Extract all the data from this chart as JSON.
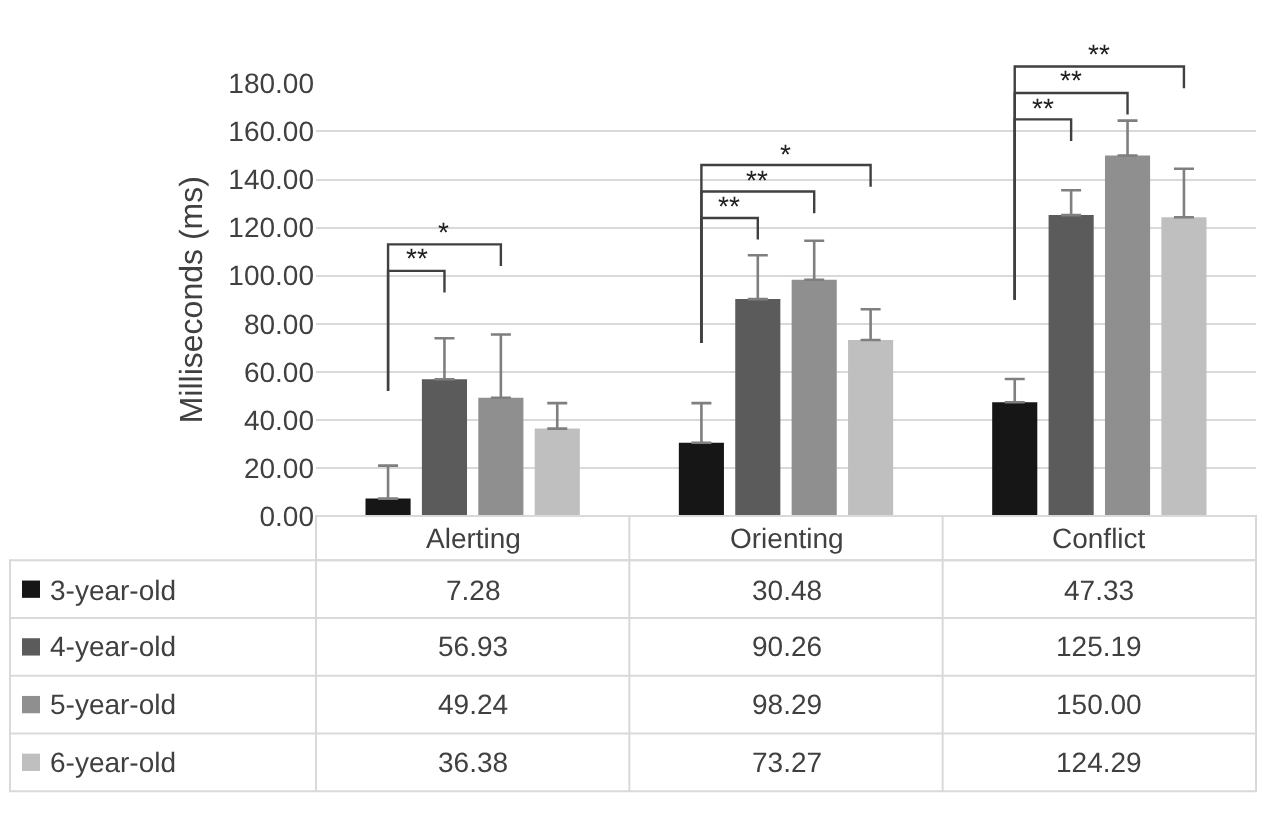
{
  "chart_data": {
    "type": "bar",
    "ylabel": "Milliseconds (ms)",
    "categories": [
      "Alerting",
      "Orienting",
      "Conflict"
    ],
    "series": [
      {
        "name": "3-year-old",
        "color": "#161616",
        "values": [
          7.28,
          30.48,
          47.33
        ],
        "value_labels": [
          "7.28",
          "30.48",
          "47.33"
        ],
        "errors": [
          [
            7.28,
            21
          ],
          [
            30.48,
            47
          ],
          [
            47.33,
            57
          ]
        ]
      },
      {
        "name": "4-year-old",
        "color": "#5b5b5b",
        "values": [
          56.93,
          90.26,
          125.19
        ],
        "value_labels": [
          "56.93",
          "90.26",
          "125.19"
        ],
        "errors": [
          [
            56.93,
            74
          ],
          [
            90.26,
            108.5
          ],
          [
            125.19,
            135.5
          ]
        ]
      },
      {
        "name": "5-year-old",
        "color": "#8f8f8f",
        "values": [
          49.24,
          98.29,
          150.0
        ],
        "value_labels": [
          "49.24",
          "98.29",
          "150.00"
        ],
        "errors": [
          [
            49.24,
            75.5
          ],
          [
            98.29,
            114.5
          ],
          [
            150.0,
            164.5
          ]
        ]
      },
      {
        "name": "6-year-old",
        "color": "#bfbfbf",
        "values": [
          36.38,
          73.27,
          124.29
        ],
        "value_labels": [
          "36.38",
          "73.27",
          "124.29"
        ],
        "errors": [
          [
            36.38,
            47
          ],
          [
            73.27,
            86
          ],
          [
            124.29,
            144.5
          ]
        ]
      }
    ],
    "ylim": [
      0,
      180
    ],
    "yticks": [
      {
        "value": 0,
        "label": "0.00"
      },
      {
        "value": 20,
        "label": "20.00"
      },
      {
        "value": 40,
        "label": "40.00"
      },
      {
        "value": 60,
        "label": "60.00"
      },
      {
        "value": 80,
        "label": "80.00"
      },
      {
        "value": 100,
        "label": "100.00"
      },
      {
        "value": 120,
        "label": "120.00"
      },
      {
        "value": 140,
        "label": "140.00"
      },
      {
        "value": 160,
        "label": "160.00"
      },
      {
        "value": 180,
        "label": "180.00"
      }
    ],
    "grid": "y",
    "legend": "bottom",
    "annotations": [
      "**",
      "*",
      "**",
      "**",
      "*",
      "**",
      "**",
      "**"
    ]
  }
}
